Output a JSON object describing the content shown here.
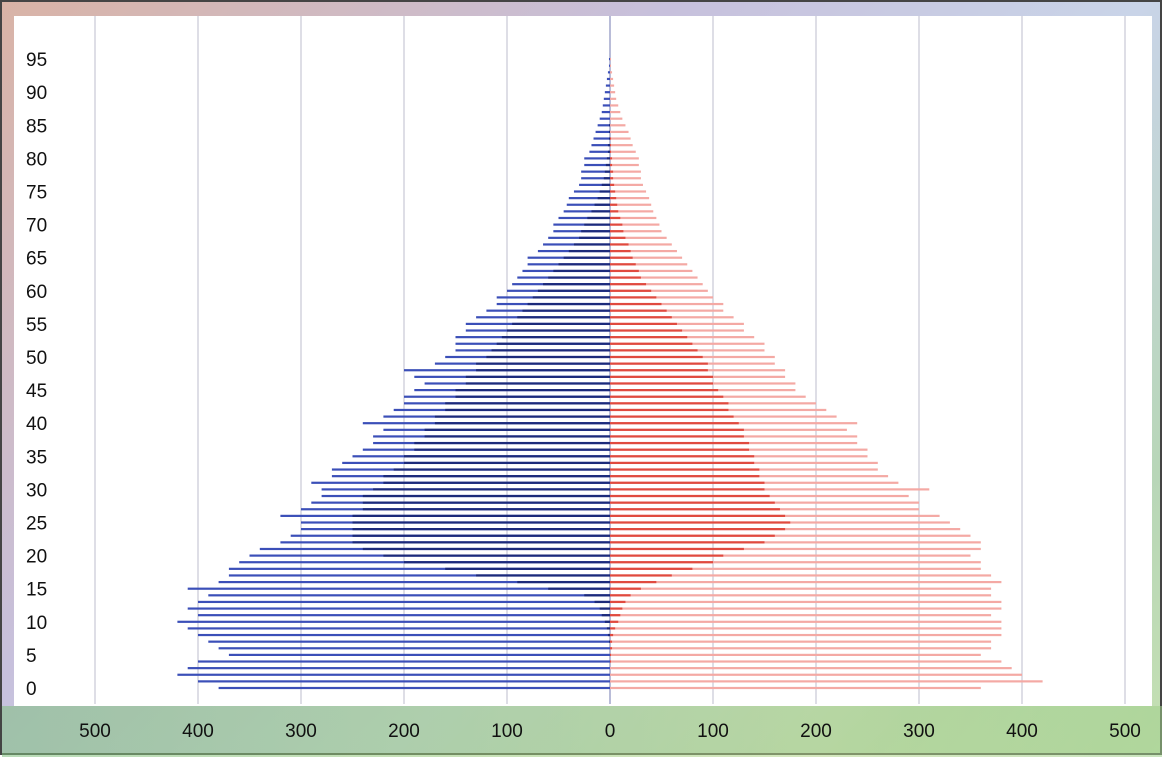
{
  "chart_data": {
    "type": "bar",
    "orientation": "horizontal",
    "title": "",
    "xlabel": "",
    "ylabel": "",
    "xlim": [
      -500,
      500
    ],
    "ylim": [
      0,
      96
    ],
    "grid": "vertical",
    "x_tick_labels": [
      "500",
      "400",
      "300",
      "200",
      "100",
      "0",
      "100",
      "200",
      "300",
      "400",
      "500"
    ],
    "x_tick_values": [
      -500,
      -400,
      -300,
      -200,
      -100,
      0,
      100,
      200,
      300,
      400,
      500
    ],
    "y_tick_labels": [
      "0",
      "5",
      "10",
      "15",
      "20",
      "25",
      "30",
      "35",
      "40",
      "45",
      "50",
      "55",
      "60",
      "65",
      "70",
      "75",
      "80",
      "85",
      "90",
      "95"
    ],
    "y_tick_values": [
      0,
      5,
      10,
      15,
      20,
      25,
      30,
      35,
      40,
      45,
      50,
      55,
      60,
      65,
      70,
      75,
      80,
      85,
      90,
      95
    ],
    "ages": [
      0,
      1,
      2,
      3,
      4,
      5,
      6,
      7,
      8,
      9,
      10,
      11,
      12,
      13,
      14,
      15,
      16,
      17,
      18,
      19,
      20,
      21,
      22,
      23,
      24,
      25,
      26,
      27,
      28,
      29,
      30,
      31,
      32,
      33,
      34,
      35,
      36,
      37,
      38,
      39,
      40,
      41,
      42,
      43,
      44,
      45,
      46,
      47,
      48,
      49,
      50,
      51,
      52,
      53,
      54,
      55,
      56,
      57,
      58,
      59,
      60,
      61,
      62,
      63,
      64,
      65,
      66,
      67,
      68,
      69,
      70,
      71,
      72,
      73,
      74,
      75,
      76,
      77,
      78,
      79,
      80,
      81,
      82,
      83,
      84,
      85,
      86,
      87,
      88,
      89,
      90,
      91,
      92,
      93,
      94,
      95
    ],
    "series": [
      {
        "color": "#3b4fb8",
        "values": [
          380,
          400,
          420,
          410,
          400,
          370,
          380,
          390,
          400,
          410,
          420,
          400,
          410,
          400,
          390,
          410,
          380,
          370,
          370,
          360,
          350,
          340,
          320,
          310,
          300,
          300,
          320,
          300,
          290,
          280,
          280,
          290,
          270,
          270,
          260,
          250,
          240,
          230,
          230,
          220,
          240,
          220,
          210,
          200,
          200,
          190,
          180,
          190,
          200,
          170,
          160,
          150,
          150,
          150,
          140,
          140,
          130,
          120,
          110,
          110,
          100,
          95,
          90,
          85,
          80,
          80,
          70,
          65,
          60,
          55,
          55,
          50,
          45,
          42,
          40,
          35,
          30,
          28,
          28,
          25,
          25,
          20,
          18,
          16,
          14,
          12,
          10,
          8,
          7,
          6,
          5,
          4,
          3,
          2,
          1,
          1
        ]
      },
      {
        "color": "#1c2a7a",
        "values": [
          0,
          0,
          0,
          0,
          0,
          0,
          0,
          1,
          2,
          3,
          5,
          8,
          10,
          15,
          25,
          60,
          90,
          130,
          160,
          200,
          220,
          240,
          250,
          250,
          250,
          250,
          250,
          240,
          240,
          240,
          230,
          220,
          220,
          210,
          200,
          200,
          190,
          190,
          180,
          180,
          170,
          170,
          160,
          160,
          150,
          150,
          140,
          140,
          130,
          130,
          120,
          115,
          110,
          105,
          100,
          95,
          90,
          85,
          80,
          75,
          70,
          65,
          60,
          55,
          50,
          45,
          40,
          35,
          30,
          28,
          25,
          22,
          18,
          15,
          12,
          10,
          8,
          6,
          5,
          4,
          3,
          2,
          2,
          1,
          1,
          1,
          0,
          0,
          0,
          0,
          0,
          0,
          0,
          0,
          0,
          0
        ]
      },
      {
        "color": "#f4a9a4",
        "values": [
          360,
          420,
          400,
          390,
          380,
          360,
          370,
          370,
          380,
          380,
          380,
          370,
          380,
          380,
          370,
          370,
          380,
          370,
          360,
          360,
          350,
          360,
          360,
          350,
          340,
          330,
          320,
          300,
          300,
          290,
          310,
          280,
          270,
          260,
          260,
          250,
          250,
          240,
          240,
          230,
          240,
          220,
          210,
          200,
          190,
          180,
          180,
          170,
          170,
          160,
          160,
          150,
          150,
          140,
          130,
          130,
          120,
          110,
          110,
          100,
          95,
          90,
          85,
          80,
          75,
          70,
          65,
          60,
          55,
          50,
          48,
          45,
          42,
          40,
          38,
          35,
          32,
          30,
          30,
          28,
          28,
          25,
          22,
          20,
          18,
          15,
          12,
          10,
          8,
          6,
          5,
          4,
          3,
          2,
          1,
          1
        ]
      },
      {
        "color": "#e04a3f",
        "values": [
          0,
          0,
          0,
          0,
          1,
          1,
          2,
          2,
          3,
          5,
          8,
          10,
          12,
          15,
          20,
          30,
          45,
          60,
          80,
          100,
          110,
          130,
          150,
          160,
          170,
          175,
          170,
          165,
          160,
          155,
          150,
          150,
          145,
          145,
          140,
          140,
          135,
          135,
          130,
          130,
          125,
          120,
          115,
          115,
          110,
          105,
          100,
          100,
          95,
          95,
          90,
          85,
          80,
          75,
          70,
          65,
          60,
          55,
          50,
          45,
          40,
          35,
          30,
          28,
          25,
          22,
          20,
          18,
          15,
          13,
          12,
          10,
          8,
          7,
          6,
          5,
          4,
          3,
          3,
          2,
          2,
          1,
          1,
          1,
          0,
          0,
          0,
          0,
          0,
          0,
          0,
          0,
          0,
          0,
          0,
          0
        ]
      }
    ]
  }
}
